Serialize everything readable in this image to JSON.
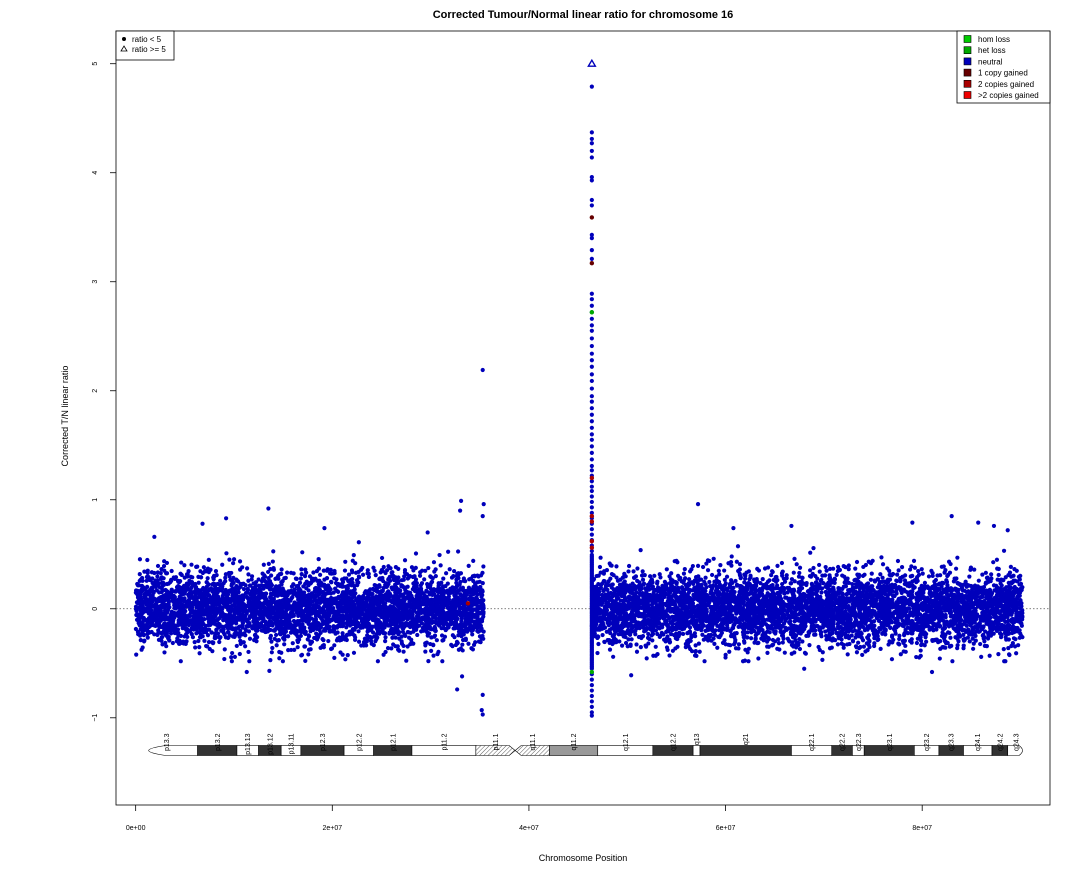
{
  "chart_data": {
    "type": "scatter",
    "title": "Corrected Tumour/Normal linear ratio for chromosome  16",
    "xlabel": "Chromosome Position",
    "ylabel": "Corrected T/N linear ratio",
    "xlim": [
      -2000000,
      93000000
    ],
    "ylim": [
      -1.8,
      5.3
    ],
    "x_ticks": [
      0,
      20000000,
      40000000,
      60000000,
      80000000
    ],
    "x_tick_labels": [
      "0e+00",
      "2e+07",
      "4e+07",
      "6e+07",
      "8e+07"
    ],
    "y_ticks": [
      -1,
      0,
      1,
      2,
      3,
      4,
      5
    ],
    "y_tick_labels": [
      "−1",
      "0",
      "1",
      "2",
      "3",
      "4",
      "5"
    ],
    "reference_line_y": 0,
    "shape_legend": {
      "position": "top-left",
      "entries": [
        {
          "label": "ratio < 5",
          "symbol": "filled-circle"
        },
        {
          "label": "ratio >= 5",
          "symbol": "open-triangle"
        }
      ]
    },
    "color_legend": {
      "position": "top-right",
      "entries": [
        {
          "label": "hom loss",
          "color": "#00cc00"
        },
        {
          "label": "het loss",
          "color": "#00aa00"
        },
        {
          "label": "neutral",
          "color": "#0000bb"
        },
        {
          "label": "1 copy gained",
          "color": "#660000"
        },
        {
          "label": "2 copies gained",
          "color": "#aa0000"
        },
        {
          "label": ">2 copies gained",
          "color": "#ee0000"
        }
      ]
    },
    "series": [
      {
        "name": "neutral",
        "color": "#0000bb",
        "segments": [
          {
            "x_range": [
              0,
              35400000
            ],
            "center": 0,
            "spread": 0.37,
            "count": 4200
          },
          {
            "x_range": [
              46400000,
              90200000
            ],
            "center": 0,
            "spread": 0.37,
            "count": 5200
          }
        ],
        "outliers": [
          {
            "x": 35300000,
            "y": 2.19
          },
          {
            "x": 35400000,
            "y": 0.96
          },
          {
            "x": 35300000,
            "y": 0.85
          },
          {
            "x": 33100000,
            "y": 0.99
          },
          {
            "x": 33000000,
            "y": 0.9
          },
          {
            "x": 29700000,
            "y": 0.7
          },
          {
            "x": 13500000,
            "y": 0.92
          },
          {
            "x": 9200000,
            "y": 0.83
          },
          {
            "x": 6800000,
            "y": 0.78
          },
          {
            "x": 19200000,
            "y": 0.74
          },
          {
            "x": 22700000,
            "y": 0.61
          },
          {
            "x": 1900000,
            "y": 0.66
          },
          {
            "x": 57200000,
            "y": 0.96
          },
          {
            "x": 60800000,
            "y": 0.74
          },
          {
            "x": 66700000,
            "y": 0.76
          },
          {
            "x": 79000000,
            "y": 0.79
          },
          {
            "x": 83000000,
            "y": 0.85
          },
          {
            "x": 85700000,
            "y": 0.79
          },
          {
            "x": 88700000,
            "y": 0.72
          },
          {
            "x": 87300000,
            "y": 0.76
          },
          {
            "x": 32700000,
            "y": -0.74
          },
          {
            "x": 33200000,
            "y": -0.62
          },
          {
            "x": 35300000,
            "y": -0.79
          },
          {
            "x": 35200000,
            "y": -0.93
          },
          {
            "x": 35300000,
            "y": -0.97
          },
          {
            "x": 11300000,
            "y": -0.58
          },
          {
            "x": 13600000,
            "y": -0.57
          },
          {
            "x": 50400000,
            "y": -0.61
          },
          {
            "x": 81000000,
            "y": -0.58
          },
          {
            "x": 68000000,
            "y": -0.55
          }
        ],
        "spike": {
          "x": 46400000,
          "values": [
            4.79,
            4.37,
            4.31,
            4.27,
            4.2,
            4.14,
            3.96,
            3.93,
            3.75,
            3.7,
            3.43,
            3.4,
            3.29,
            3.21,
            2.89,
            2.84,
            2.78,
            2.72,
            2.66,
            2.6,
            2.55,
            2.48,
            2.41,
            2.34,
            2.28,
            2.22,
            2.15,
            2.09,
            2.02,
            1.95,
            1.9,
            1.84,
            1.78,
            1.72,
            1.66,
            1.6,
            1.55,
            1.49,
            1.43,
            1.37,
            1.31,
            1.27,
            1.22,
            1.17,
            1.12,
            1.08,
            1.03,
            0.98,
            0.93,
            0.88,
            0.83,
            0.78,
            0.73,
            0.68,
            0.63,
            0.58,
            0.53,
            -0.6,
            -0.65,
            -0.7,
            -0.75,
            -0.8,
            -0.85,
            -0.9,
            -0.95,
            -0.98
          ]
        }
      },
      {
        "name": "1 copy gained",
        "color": "#660000",
        "points": [
          {
            "x": 46400000,
            "y": 3.59
          },
          {
            "x": 46400000,
            "y": 3.17
          }
        ]
      },
      {
        "name": "2 copies gained",
        "color": "#aa0000",
        "points": [
          {
            "x": 46400000,
            "y": 1.2
          },
          {
            "x": 46400000,
            "y": 0.85
          },
          {
            "x": 46400000,
            "y": 0.8
          },
          {
            "x": 46400000,
            "y": 0.62
          },
          {
            "x": 46400000,
            "y": 0.56
          },
          {
            "x": 33800000,
            "y": 0.05
          }
        ]
      },
      {
        "name": "het loss",
        "color": "#00aa00",
        "points": [
          {
            "x": 46400000,
            "y": 2.72
          },
          {
            "x": 46400000,
            "y": -0.58
          }
        ]
      },
      {
        "name": "ratio >= 5",
        "color": "#0000bb",
        "symbol": "open-triangle",
        "points": [
          {
            "x": 46400000,
            "y": 5.0
          }
        ]
      }
    ],
    "ideogram": {
      "y": -1.3,
      "bands": [
        {
          "name": "p13.3",
          "start": 0,
          "end": 6300000,
          "stain": "gneg"
        },
        {
          "name": "p13.2",
          "start": 6300000,
          "end": 10300000,
          "stain": "gpos"
        },
        {
          "name": "p13.13",
          "start": 10300000,
          "end": 12500000,
          "stain": "gneg"
        },
        {
          "name": "p13.12",
          "start": 12500000,
          "end": 14800000,
          "stain": "gpos"
        },
        {
          "name": "p13.11",
          "start": 14800000,
          "end": 16800000,
          "stain": "gneg"
        },
        {
          "name": "p12.3",
          "start": 16800000,
          "end": 21200000,
          "stain": "gpos"
        },
        {
          "name": "p12.2",
          "start": 21200000,
          "end": 24200000,
          "stain": "gneg"
        },
        {
          "name": "p12.1",
          "start": 24200000,
          "end": 28100000,
          "stain": "gpos"
        },
        {
          "name": "p11.2",
          "start": 28100000,
          "end": 34600000,
          "stain": "gneg"
        },
        {
          "name": "p11.1",
          "start": 34600000,
          "end": 38600000,
          "stain": "acen"
        },
        {
          "name": "q11.1",
          "start": 38600000,
          "end": 42100000,
          "stain": "acen"
        },
        {
          "name": "q11.2",
          "start": 42100000,
          "end": 47000000,
          "stain": "gvar"
        },
        {
          "name": "q12.1",
          "start": 47000000,
          "end": 52600000,
          "stain": "gneg"
        },
        {
          "name": "q12.2",
          "start": 52600000,
          "end": 56700000,
          "stain": "gpos"
        },
        {
          "name": "q13",
          "start": 56700000,
          "end": 57400000,
          "stain": "gneg"
        },
        {
          "name": "q21",
          "start": 57400000,
          "end": 66700000,
          "stain": "gpos"
        },
        {
          "name": "q22.1",
          "start": 66700000,
          "end": 70800000,
          "stain": "gneg"
        },
        {
          "name": "q22.2",
          "start": 70800000,
          "end": 72900000,
          "stain": "gpos"
        },
        {
          "name": "q22.3",
          "start": 72900000,
          "end": 74100000,
          "stain": "gneg"
        },
        {
          "name": "q23.1",
          "start": 74100000,
          "end": 79200000,
          "stain": "gpos"
        },
        {
          "name": "q23.2",
          "start": 79200000,
          "end": 81700000,
          "stain": "gneg"
        },
        {
          "name": "q23.3",
          "start": 81700000,
          "end": 84200000,
          "stain": "gpos"
        },
        {
          "name": "q24.1",
          "start": 84200000,
          "end": 87100000,
          "stain": "gneg"
        },
        {
          "name": "q24.2",
          "start": 87100000,
          "end": 88700000,
          "stain": "gpos"
        },
        {
          "name": "q24.3",
          "start": 88700000,
          "end": 90354753,
          "stain": "gneg"
        }
      ]
    }
  }
}
